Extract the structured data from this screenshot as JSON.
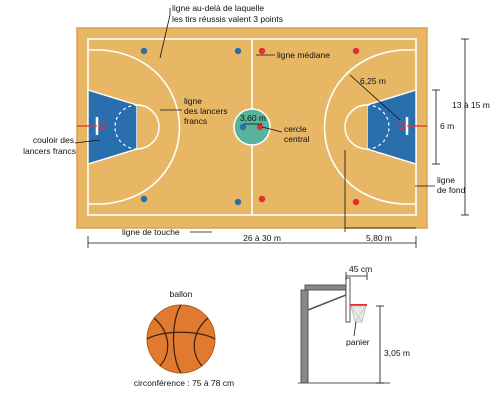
{
  "labels": {
    "three_point_line_1": "ligne au-delà de laquelle",
    "three_point_line_2": "les tirs réussis valent 3 points",
    "center_line": "ligne médiane",
    "radius_3pt": "6,25 m",
    "free_throw_line_1": "ligne",
    "free_throw_line_2": "des lancers",
    "free_throw_line_3": "francs",
    "circle_diameter": "3,60 m",
    "center_circle_1": "cercle",
    "center_circle_2": "central",
    "lane_1": "couloir des",
    "lane_2": "lancers francs",
    "court_width": "13 à 15 m",
    "lane_width": "6 m",
    "end_line_1": "ligne",
    "end_line_2": "de fond",
    "sideline": "ligne de touche",
    "court_length": "26 à 30 m",
    "lane_length": "5,80 m",
    "ball_title": "ballon",
    "ball_circumference": "circonférence : 75 à 78 cm",
    "backboard_offset": "45 cm",
    "basket": "panier",
    "basket_height": "3,05 m"
  },
  "colors": {
    "court": "#e7b766",
    "court_edge": "#d9a24f",
    "lines": "#ffffff",
    "paint": "#2a6fad",
    "center_circle": "#57b39a",
    "player_red": "#e03030",
    "player_blue": "#2a6fad",
    "ball": "#e07a30",
    "ball_dark": "#b85a18",
    "structure": "#555555",
    "net": "#d8d8d8",
    "rim": "#e03030"
  }
}
